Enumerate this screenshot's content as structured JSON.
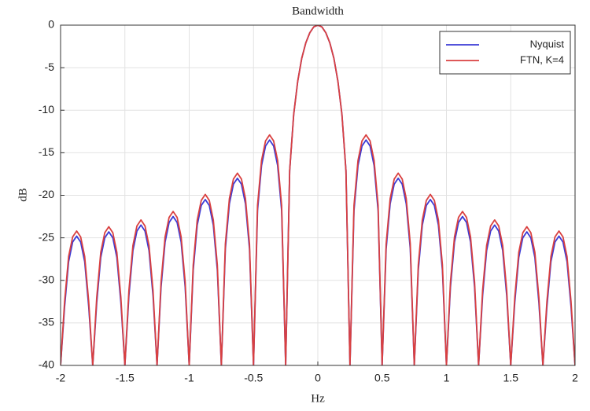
{
  "chart_data": {
    "type": "line",
    "title": "Bandwidth",
    "x_label": "Hz",
    "y_label": "dB",
    "xlim": [
      -2,
      2
    ],
    "ylim": [
      -40,
      0
    ],
    "xticks": [
      -2,
      -1.5,
      -1,
      -0.5,
      0,
      0.5,
      1,
      1.5,
      2
    ],
    "yticks": [
      0,
      -5,
      -10,
      -15,
      -20,
      -25,
      -30,
      -35,
      -40
    ],
    "grid": true,
    "legend": "northeast",
    "x": [
      -2,
      -1.96875,
      -1.9375,
      -1.90625,
      -1.875,
      -1.84375,
      -1.8125,
      -1.78125,
      -1.75,
      -1.71875,
      -1.6875,
      -1.65625,
      -1.625,
      -1.59375,
      -1.5625,
      -1.53125,
      -1.5,
      -1.46875,
      -1.4375,
      -1.40625,
      -1.375,
      -1.34375,
      -1.3125,
      -1.28125,
      -1.25,
      -1.21875,
      -1.1875,
      -1.15625,
      -1.125,
      -1.09375,
      -1.0625,
      -1.03125,
      -1,
      -0.96875,
      -0.9375,
      -0.90625,
      -0.875,
      -0.84375,
      -0.8125,
      -0.78125,
      -0.75,
      -0.71875,
      -0.6875,
      -0.65625,
      -0.625,
      -0.59375,
      -0.5625,
      -0.53125,
      -0.5,
      -0.46875,
      -0.4375,
      -0.40625,
      -0.375,
      -0.34375,
      -0.3125,
      -0.28125,
      -0.25,
      -0.21875,
      -0.1875,
      -0.15625,
      -0.125,
      -0.09375,
      -0.0625,
      -0.03125,
      0,
      0.03125,
      0.0625,
      0.09375,
      0.125,
      0.15625,
      0.1875,
      0.21875,
      0.25,
      0.28125,
      0.3125,
      0.34375,
      0.375,
      0.40625,
      0.4375,
      0.46875,
      0.5,
      0.53125,
      0.5625,
      0.59375,
      0.625,
      0.65625,
      0.6875,
      0.71875,
      0.75,
      0.78125,
      0.8125,
      0.84375,
      0.875,
      0.90625,
      0.9375,
      0.96875,
      1,
      1.03125,
      1.0625,
      1.09375,
      1.125,
      1.15625,
      1.1875,
      1.21875,
      1.25,
      1.28125,
      1.3125,
      1.34375,
      1.375,
      1.40625,
      1.4375,
      1.46875,
      1.5,
      1.53125,
      1.5625,
      1.59375,
      1.625,
      1.65625,
      1.6875,
      1.71875,
      1.75,
      1.78125,
      1.8125,
      1.84375,
      1.875,
      1.90625,
      1.9375,
      1.96875,
      2
    ],
    "series": [
      {
        "name": "Nyquist",
        "color": "#3b3bd6",
        "values": [
          -40,
          -33.1,
          -27.8,
          -25.5,
          -24.8,
          -25.5,
          -27.8,
          -33.1,
          -40,
          -32.6,
          -27.3,
          -25,
          -24.3,
          -25,
          -27.3,
          -32.6,
          -40,
          -31.8,
          -26.5,
          -24.2,
          -23.5,
          -24.2,
          -26.5,
          -31.8,
          -40,
          -30.8,
          -25.5,
          -23.2,
          -22.5,
          -23.2,
          -25.5,
          -30.8,
          -40,
          -28.8,
          -23.5,
          -21.2,
          -20.5,
          -21.2,
          -23.5,
          -28.8,
          -40,
          -26.3,
          -21,
          -18.7,
          -18,
          -18.7,
          -21,
          -26.3,
          -40,
          -21.8,
          -16.5,
          -14.2,
          -13.5,
          -14.2,
          -16.5,
          -21.8,
          -40,
          -17.1,
          -10.5,
          -6.6,
          -3.9,
          -2.1,
          -0.9,
          -0.2,
          0,
          -0.2,
          -0.9,
          -2.1,
          -3.9,
          -6.6,
          -10.5,
          -17.1,
          -40,
          -21.8,
          -16.5,
          -14.2,
          -13.5,
          -14.2,
          -16.5,
          -21.8,
          -40,
          -26.3,
          -21,
          -18.7,
          -18,
          -18.7,
          -21,
          -26.3,
          -40,
          -28.8,
          -23.5,
          -21.2,
          -20.5,
          -21.2,
          -23.5,
          -28.8,
          -40,
          -30.8,
          -25.5,
          -23.2,
          -22.5,
          -23.2,
          -25.5,
          -30.8,
          -40,
          -31.8,
          -26.5,
          -24.2,
          -23.5,
          -24.2,
          -26.5,
          -31.8,
          -40,
          -32.6,
          -27.3,
          -25,
          -24.3,
          -25,
          -27.3,
          -32.6,
          -40,
          -33.1,
          -27.8,
          -25.5,
          -24.8,
          -25.5,
          -27.8,
          -33.1,
          -40
        ]
      },
      {
        "name": "FTN, K=4",
        "color": "#d94040",
        "values": [
          -40,
          -32.5,
          -27.2,
          -24.9,
          -24.2,
          -24.9,
          -27.2,
          -32.5,
          -40,
          -32,
          -26.7,
          -24.4,
          -23.7,
          -24.4,
          -26.7,
          -32,
          -40,
          -31.2,
          -25.9,
          -23.6,
          -22.9,
          -23.6,
          -25.9,
          -31.2,
          -40,
          -30.2,
          -24.9,
          -22.6,
          -21.9,
          -22.6,
          -24.9,
          -30.2,
          -40,
          -28.2,
          -22.9,
          -20.6,
          -19.9,
          -20.6,
          -22.9,
          -28.2,
          -40,
          -25.7,
          -20.4,
          -18.1,
          -17.4,
          -18.1,
          -20.4,
          -25.7,
          -40,
          -21.2,
          -15.9,
          -13.6,
          -12.9,
          -13.6,
          -15.9,
          -21.2,
          -40,
          -17.1,
          -10.5,
          -6.6,
          -3.9,
          -2.1,
          -0.9,
          -0.2,
          0,
          -0.2,
          -0.9,
          -2.1,
          -3.9,
          -6.6,
          -10.5,
          -17.1,
          -40,
          -21.2,
          -15.9,
          -13.6,
          -12.9,
          -13.6,
          -15.9,
          -21.2,
          -40,
          -25.7,
          -20.4,
          -18.1,
          -17.4,
          -18.1,
          -20.4,
          -25.7,
          -40,
          -28.2,
          -22.9,
          -20.6,
          -19.9,
          -20.6,
          -22.9,
          -28.2,
          -40,
          -30.2,
          -24.9,
          -22.6,
          -21.9,
          -22.6,
          -24.9,
          -30.2,
          -40,
          -31.2,
          -25.9,
          -23.6,
          -22.9,
          -23.6,
          -25.9,
          -31.2,
          -40,
          -32,
          -26.7,
          -24.4,
          -23.7,
          -24.4,
          -26.7,
          -32,
          -40,
          -32.5,
          -27.2,
          -24.9,
          -24.2,
          -24.9,
          -27.2,
          -32.5,
          -40
        ]
      }
    ]
  }
}
